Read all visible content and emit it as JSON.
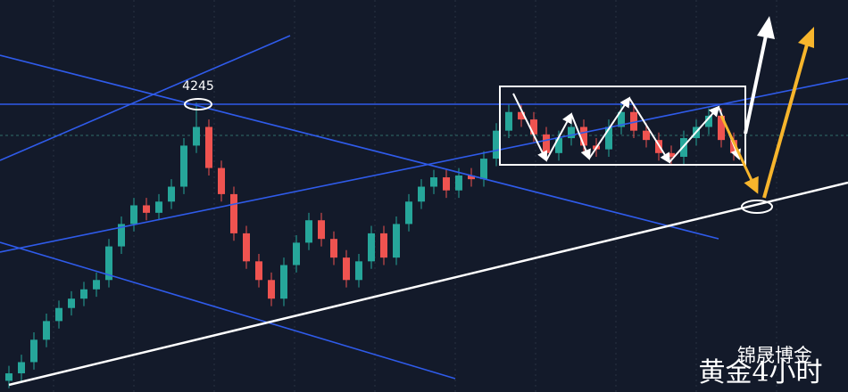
{
  "chart_data": {
    "type": "candlestick",
    "annotation": "4245",
    "watermark": "锦晟博金",
    "timeframe_label": "黄金4小时",
    "ylim": [
      4090,
      4300
    ],
    "up_color": "#26a69a",
    "down_color": "#ef5350",
    "open": [
      4096,
      4100,
      4106,
      4118,
      4128,
      4135,
      4140,
      4145,
      4150,
      4168,
      4180,
      4190,
      4186,
      4192,
      4200,
      4222,
      4232,
      4210,
      4196,
      4175,
      4160,
      4150,
      4140,
      4158,
      4170,
      4182,
      4172,
      4162,
      4150,
      4160,
      4175,
      4162,
      4180,
      4192,
      4200,
      4205,
      4198,
      4206,
      4204,
      4215,
      4230,
      4240,
      4236,
      4228,
      4218,
      4226,
      4232,
      4222,
      4220,
      4232,
      4240,
      4230,
      4225,
      4218,
      4216,
      4226,
      4232,
      4238,
      4225
    ],
    "high": [
      4104,
      4110,
      4122,
      4132,
      4139,
      4144,
      4149,
      4154,
      4172,
      4184,
      4194,
      4194,
      4196,
      4204,
      4226,
      4245,
      4236,
      4214,
      4200,
      4179,
      4164,
      4154,
      4162,
      4174,
      4186,
      4186,
      4176,
      4166,
      4164,
      4179,
      4179,
      4184,
      4196,
      4204,
      4209,
      4209,
      4210,
      4210,
      4219,
      4234,
      4244,
      4244,
      4240,
      4232,
      4230,
      4236,
      4236,
      4226,
      4236,
      4244,
      4244,
      4234,
      4229,
      4222,
      4230,
      4236,
      4242,
      4242,
      4229
    ],
    "low": [
      4092,
      4096,
      4102,
      4114,
      4124,
      4131,
      4136,
      4141,
      4146,
      4164,
      4176,
      4182,
      4182,
      4188,
      4196,
      4218,
      4206,
      4192,
      4171,
      4156,
      4146,
      4136,
      4136,
      4154,
      4166,
      4168,
      4158,
      4146,
      4146,
      4156,
      4158,
      4158,
      4176,
      4188,
      4196,
      4194,
      4194,
      4200,
      4200,
      4211,
      4226,
      4232,
      4224,
      4214,
      4214,
      4222,
      4218,
      4216,
      4216,
      4228,
      4226,
      4221,
      4214,
      4212,
      4212,
      4222,
      4228,
      4221,
      4214
    ],
    "close": [
      4100,
      4106,
      4118,
      4128,
      4135,
      4140,
      4145,
      4150,
      4168,
      4180,
      4190,
      4186,
      4192,
      4200,
      4222,
      4232,
      4210,
      4196,
      4175,
      4160,
      4150,
      4140,
      4158,
      4170,
      4182,
      4172,
      4162,
      4150,
      4160,
      4175,
      4162,
      4180,
      4192,
      4200,
      4205,
      4198,
      4206,
      4204,
      4215,
      4230,
      4240,
      4236,
      4228,
      4218,
      4226,
      4232,
      4222,
      4220,
      4232,
      4240,
      4230,
      4225,
      4218,
      4216,
      4226,
      4232,
      4238,
      4225,
      4218
    ]
  }
}
